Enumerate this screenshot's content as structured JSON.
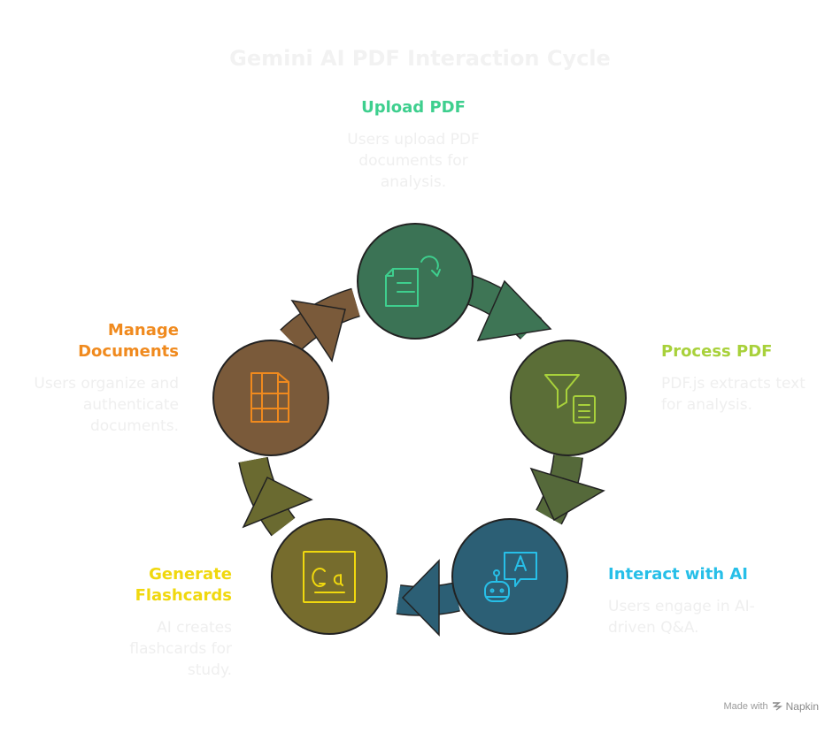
{
  "title": "Gemini AI PDF Interaction Cycle",
  "steps": [
    {
      "key": "upload",
      "label": "Upload PDF",
      "description": "Users upload PDF documents for analysis.",
      "color": "#3ecf8e",
      "node_color": "#3b7355",
      "arrow_color": "#3e7555",
      "icon": "document-rotate-icon"
    },
    {
      "key": "process",
      "label": "Process PDF",
      "description": "PDF.js extracts text for analysis.",
      "color": "#a8d13b",
      "node_color": "#5b6e37",
      "arrow_color": "#55693a",
      "icon": "filter-document-icon"
    },
    {
      "key": "interact",
      "label": "Interact with AI",
      "description": "Users engage in AI-driven Q&A.",
      "color": "#27bfe8",
      "node_color": "#2c5f75",
      "arrow_color": "#2c5f75",
      "icon": "robot-chat-icon"
    },
    {
      "key": "flashcards",
      "label": "Generate Flashcards",
      "description": "AI creates flashcards for study.",
      "color": "#f0d80e",
      "node_color": "#766c2d",
      "arrow_color": "#6a6a30",
      "icon": "flashcard-icon"
    },
    {
      "key": "manage",
      "label": "Manage Documents",
      "description": "Users organize and authenticate documents.",
      "color": "#f08a1e",
      "node_color": "#7a5a3a",
      "arrow_color": "#7a5a3a",
      "icon": "documents-grid-icon"
    }
  ],
  "footer": {
    "made_with": "Made with",
    "brand": "Napkin"
  }
}
